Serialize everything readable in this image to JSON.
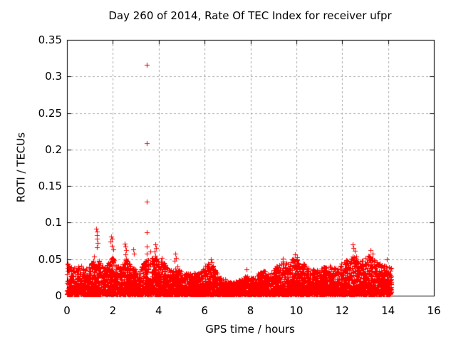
{
  "chart_data": {
    "type": "scatter",
    "title": "Day 260 of 2014, Rate Of TEC Index for receiver ufpr",
    "xlabel": "GPS time / hours",
    "ylabel": "ROTI / TECUs",
    "xlim": [
      0,
      16
    ],
    "ylim": [
      0,
      0.35
    ],
    "xticks": [
      0,
      2,
      4,
      6,
      8,
      10,
      12,
      14,
      16
    ],
    "xtick_labels": [
      "0",
      "2",
      "4",
      "6",
      "8",
      "10",
      "12",
      "14",
      "16"
    ],
    "yticks": [
      0,
      0.05,
      0.1,
      0.15,
      0.2,
      0.25,
      0.3,
      0.35
    ],
    "ytick_labels": [
      "0",
      "0.05",
      "0.1",
      "0.15",
      "0.2",
      "0.25",
      "0.3",
      "0.35"
    ],
    "grid": true,
    "legend": "none",
    "marker": {
      "shape": "plus",
      "size": 7,
      "color": "#ff0000"
    },
    "colors": {
      "points": "#ff0000",
      "grid": "#a8a8a8",
      "axis": "#000000",
      "text": "#000000"
    },
    "series_name": "ROTI",
    "x_data_range": [
      0.0,
      14.15
    ],
    "outliers": [
      [
        1.28,
        0.092
      ],
      [
        1.3,
        0.088
      ],
      [
        1.32,
        0.083
      ],
      [
        1.29,
        0.078
      ],
      [
        1.33,
        0.072
      ],
      [
        1.31,
        0.066
      ],
      [
        1.92,
        0.081
      ],
      [
        1.95,
        0.078
      ],
      [
        1.9,
        0.074
      ],
      [
        1.97,
        0.068
      ],
      [
        2.02,
        0.063
      ],
      [
        2.53,
        0.071
      ],
      [
        2.55,
        0.067
      ],
      [
        2.57,
        0.062
      ],
      [
        2.54,
        0.057
      ],
      [
        2.88,
        0.063
      ],
      [
        2.91,
        0.058
      ],
      [
        3.48,
        0.316
      ],
      [
        3.48,
        0.209
      ],
      [
        3.48,
        0.129
      ],
      [
        3.48,
        0.087
      ],
      [
        3.47,
        0.067
      ],
      [
        3.49,
        0.058
      ],
      [
        3.62,
        0.06
      ],
      [
        3.85,
        0.07
      ],
      [
        3.88,
        0.065
      ],
      [
        3.82,
        0.06
      ],
      [
        3.86,
        0.055
      ],
      [
        4.12,
        0.052
      ],
      [
        4.1,
        0.048
      ],
      [
        4.72,
        0.058
      ],
      [
        4.75,
        0.052
      ],
      [
        4.7,
        0.048
      ],
      [
        6.28,
        0.05
      ],
      [
        6.32,
        0.046
      ],
      [
        7.82,
        0.036
      ],
      [
        9.4,
        0.051
      ],
      [
        9.95,
        0.057
      ],
      [
        10.02,
        0.053
      ],
      [
        12.45,
        0.07
      ],
      [
        12.5,
        0.065
      ],
      [
        12.55,
        0.061
      ],
      [
        13.25,
        0.062
      ],
      [
        13.32,
        0.058
      ],
      [
        13.95,
        0.05
      ]
    ],
    "band": {
      "comment_free": "dense noise band; top envelope sampled every 0.2 h",
      "x": [
        0,
        0.2,
        0.4,
        0.6,
        0.8,
        1.0,
        1.2,
        1.4,
        1.6,
        1.8,
        2.0,
        2.2,
        2.4,
        2.6,
        2.8,
        3.0,
        3.2,
        3.4,
        3.6,
        3.8,
        4.0,
        4.2,
        4.4,
        4.6,
        4.8,
        5.0,
        5.2,
        5.4,
        5.6,
        5.8,
        6.0,
        6.2,
        6.4,
        6.6,
        6.8,
        7.0,
        7.2,
        7.4,
        7.6,
        7.8,
        8.0,
        8.2,
        8.4,
        8.6,
        8.8,
        9.0,
        9.2,
        9.4,
        9.6,
        9.8,
        10.0,
        10.2,
        10.4,
        10.6,
        10.8,
        11.0,
        11.2,
        11.4,
        11.6,
        11.8,
        12.0,
        12.2,
        12.4,
        12.6,
        12.8,
        13.0,
        13.2,
        13.4,
        13.6,
        13.8,
        14.0,
        14.15
      ],
      "top": [
        0.046,
        0.04,
        0.038,
        0.042,
        0.036,
        0.042,
        0.055,
        0.048,
        0.038,
        0.045,
        0.055,
        0.04,
        0.042,
        0.052,
        0.038,
        0.036,
        0.04,
        0.05,
        0.048,
        0.056,
        0.044,
        0.048,
        0.038,
        0.036,
        0.04,
        0.034,
        0.03,
        0.034,
        0.03,
        0.032,
        0.04,
        0.046,
        0.042,
        0.028,
        0.024,
        0.02,
        0.018,
        0.02,
        0.022,
        0.03,
        0.026,
        0.028,
        0.032,
        0.035,
        0.032,
        0.036,
        0.042,
        0.048,
        0.044,
        0.05,
        0.052,
        0.046,
        0.042,
        0.038,
        0.036,
        0.035,
        0.04,
        0.042,
        0.038,
        0.042,
        0.046,
        0.05,
        0.058,
        0.055,
        0.048,
        0.052,
        0.055,
        0.05,
        0.045,
        0.042,
        0.04,
        0.038
      ],
      "bottom": 0.002,
      "n_points": 6000,
      "y_power": 2.1,
      "seed": 20140260
    }
  }
}
